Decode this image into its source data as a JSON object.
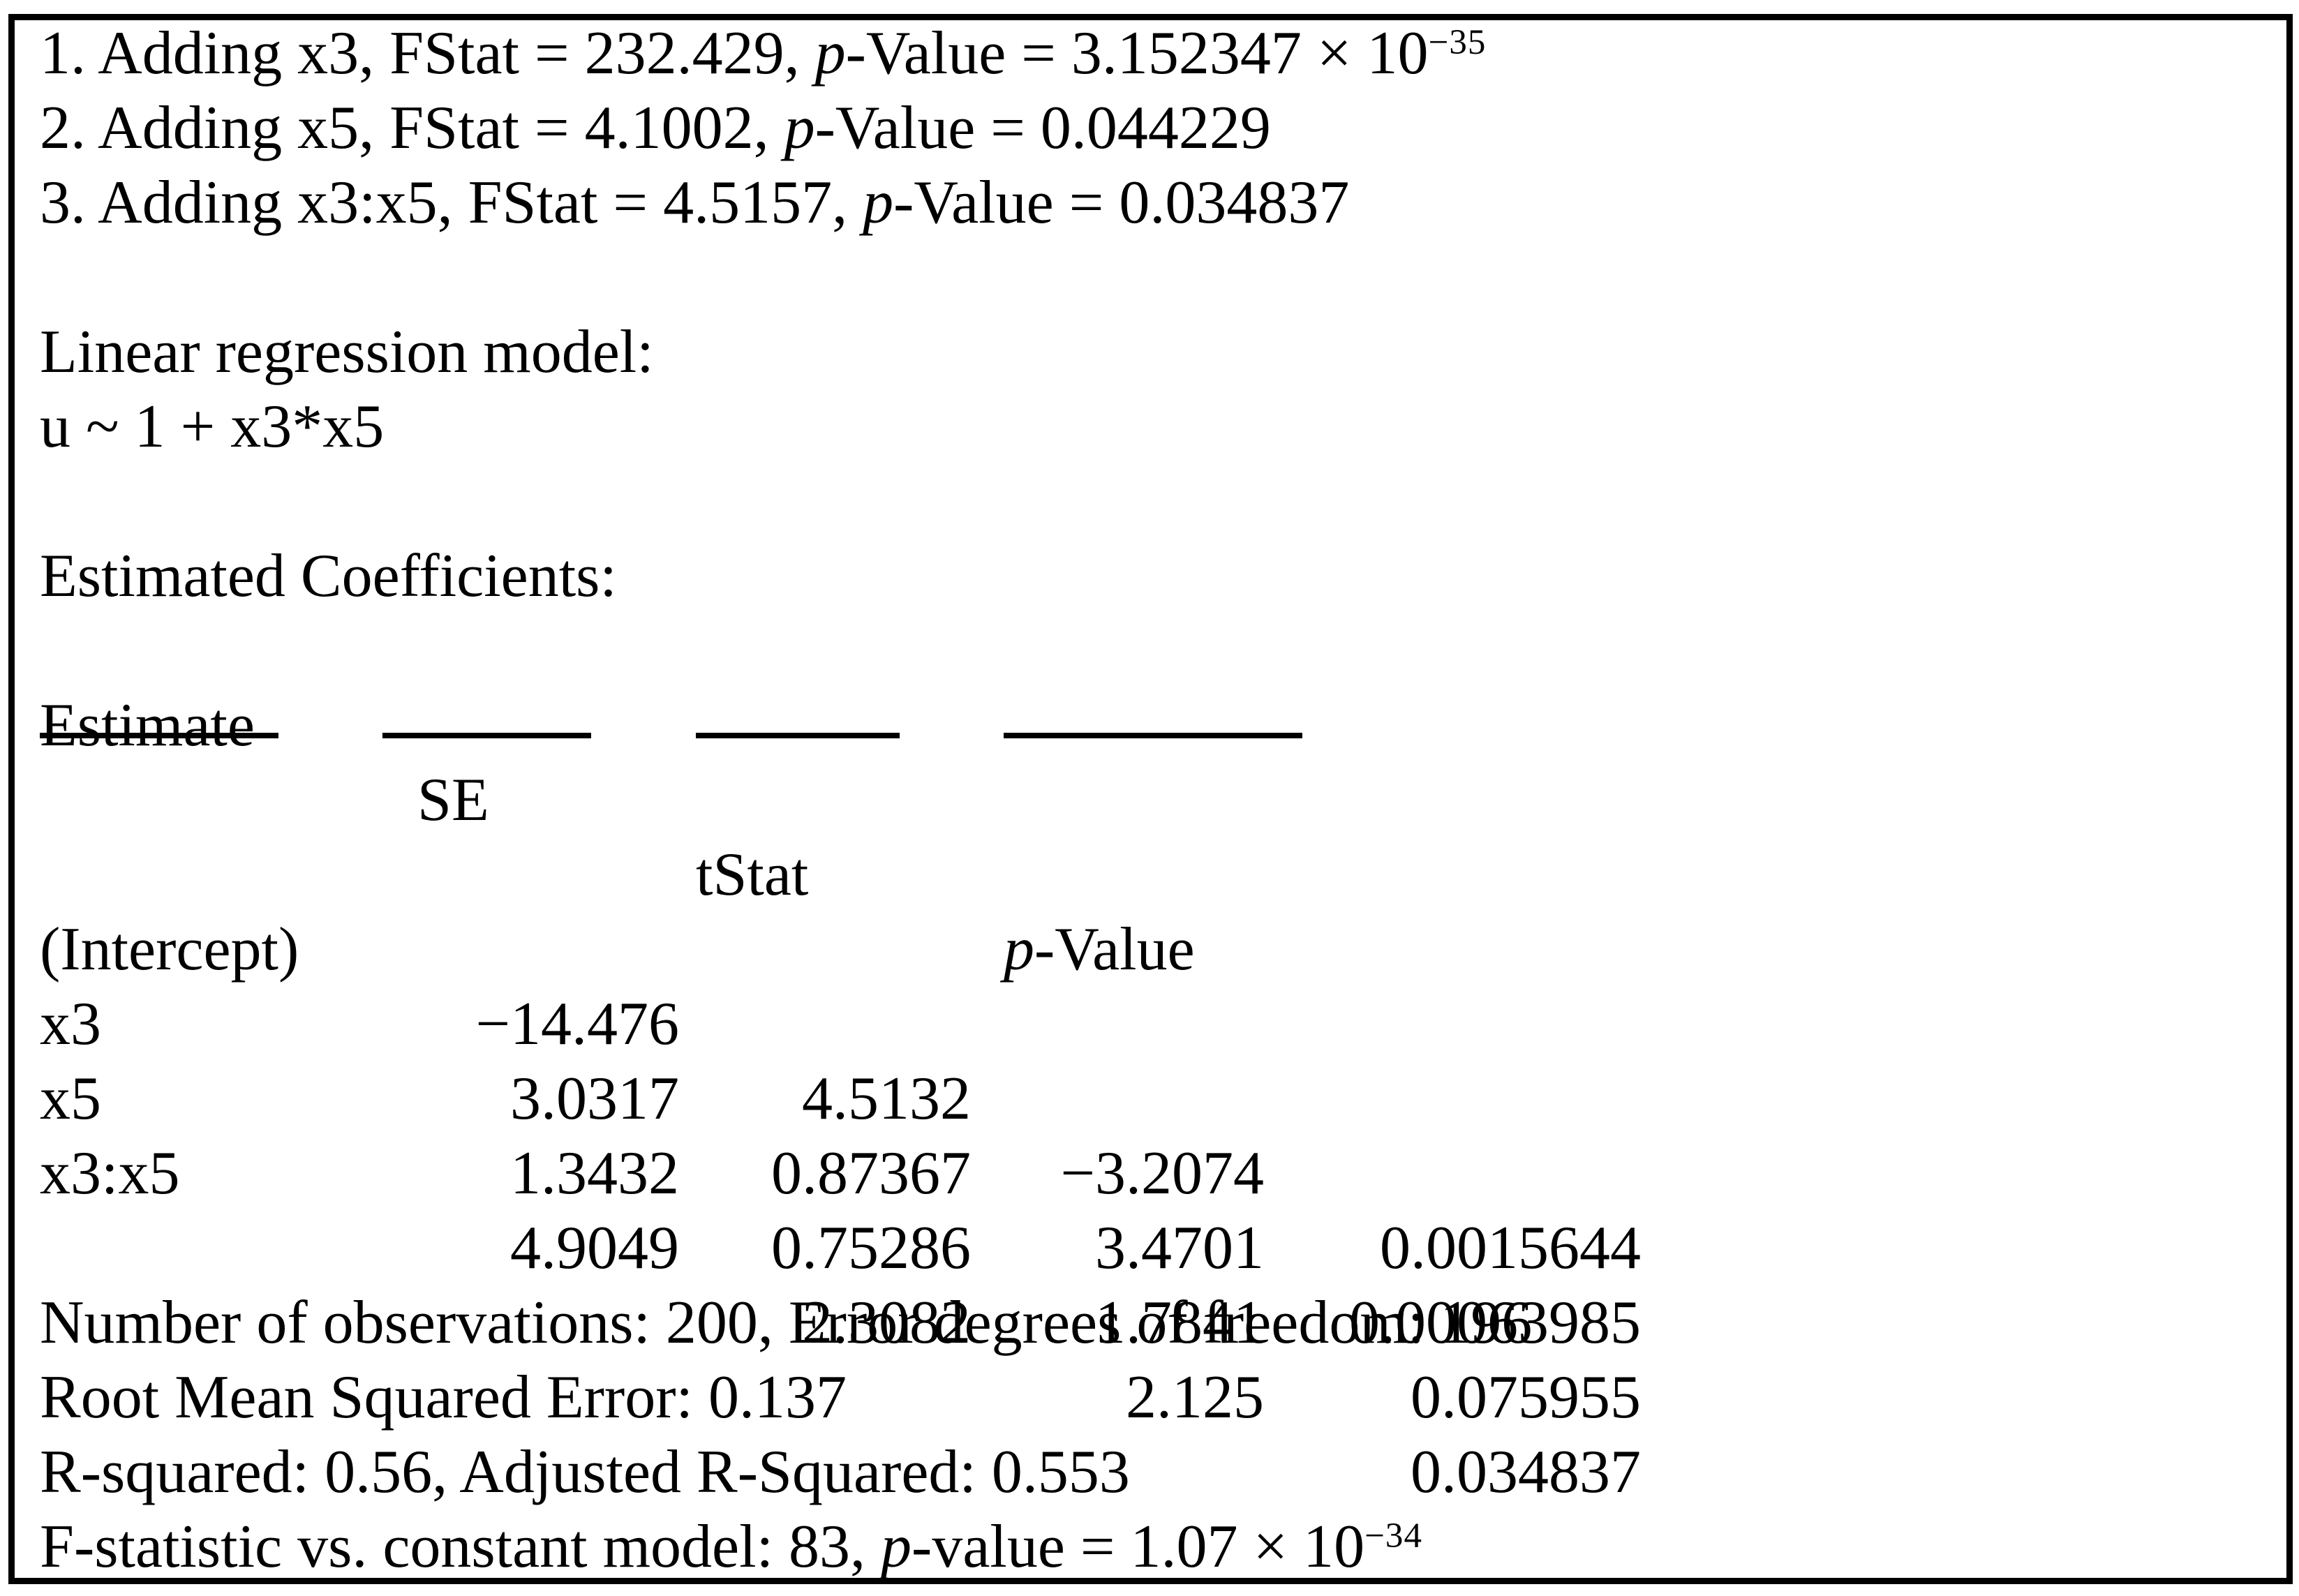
{
  "colors": {
    "background": "#ffffff",
    "text": "#000000",
    "border": "#000000"
  },
  "steps": [
    {
      "before_p": "1. Adding x3, FStat = 232.429, ",
      "p": "p",
      "after_p": "-Value = 3.152347 × 10",
      "exp": "−35"
    },
    {
      "before_p": "2. Adding x5, FStat = 4.1002, ",
      "p": "p",
      "after_p": "-Value = 0.044229",
      "exp": ""
    },
    {
      "before_p": "3. Adding x3:x5, FStat = 4.5157, ",
      "p": "p",
      "after_p": "-Value = 0.034837",
      "exp": ""
    }
  ],
  "model": {
    "title": "Linear regression model:",
    "formula": "u ~ 1 + x3*x5"
  },
  "coefficients": {
    "section_title": "Estimated Coefficients:",
    "headers": {
      "estimate": "Estimate",
      "se": "SE",
      "tstat": "tStat",
      "pvalue_p": "p",
      "pvalue_rest": "-Value"
    },
    "rows": [
      {
        "label": "(Intercept)",
        "estimate": "−14.476",
        "se": "4.5132",
        "tstat": "−3.2074",
        "pvalue": "0.0015644"
      },
      {
        "label": "x3",
        "estimate": "3.0317",
        "se": "0.87367",
        "tstat": "3.4701",
        "pvalue": "0.00063985"
      },
      {
        "label": "x5",
        "estimate": "1.3432",
        "se": "0.75286",
        "tstat": "1.7841",
        "pvalue": "0.075955"
      },
      {
        "label": "x3:x5",
        "estimate": "4.9049",
        "se": "2.3082",
        "tstat": "2.125",
        "pvalue": "0.034837"
      }
    ]
  },
  "summary": {
    "observations_line": "Number of observations: 200, Error degrees of freedom: 196",
    "rmse_line": "Root Mean Squared Error: 0.137",
    "rsquared_line": "R-squared: 0.56, Adjusted R-Squared: 0.553",
    "fstat_before_p": "F-statistic vs. constant model: 83, ",
    "fstat_p": "p",
    "fstat_after_p": "-value = 1.07 × 10",
    "fstat_exp": "−34"
  }
}
